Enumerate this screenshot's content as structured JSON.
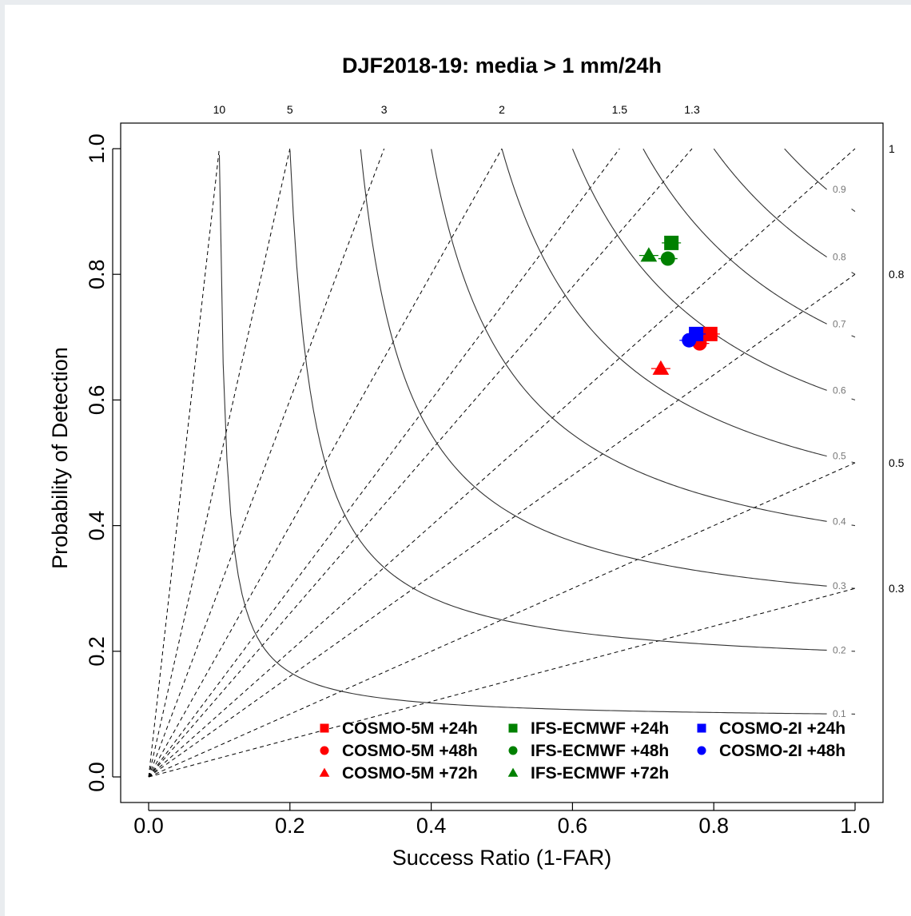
{
  "chart_data": {
    "type": "scatter",
    "title": "DJF2018-19: media > 1 mm/24h",
    "xlabel": "Success Ratio (1-FAR)",
    "ylabel": "Probability of Detection",
    "xlim": [
      0,
      1
    ],
    "ylim": [
      0,
      1
    ],
    "x_ticks": [
      "0.0",
      "0.2",
      "0.4",
      "0.6",
      "0.8",
      "1.0"
    ],
    "y_ticks": [
      "0.0",
      "0.2",
      "0.4",
      "0.6",
      "0.8",
      "1.0"
    ],
    "csi_isolines": [
      0.1,
      0.2,
      0.3,
      0.4,
      0.5,
      0.6,
      0.7,
      0.8,
      0.9
    ],
    "csi_labels": [
      "0.1",
      "0.2",
      "0.3",
      "0.4",
      "0.5",
      "0.6",
      "0.7",
      "0.8",
      "0.9"
    ],
    "bias_lines": [
      10,
      5,
      3,
      2,
      1.5,
      1.3,
      1,
      0.8,
      0.5,
      0.3
    ],
    "bias_labels_top": [
      "10",
      "5",
      "3",
      "2",
      "1.5",
      "1.3"
    ],
    "bias_labels_right": [
      "1",
      "0.8",
      "0.5",
      "0.3"
    ],
    "legend_position": "bottom-right",
    "series": [
      {
        "name": "COSMO-5M +24h",
        "color": "#ff0000",
        "marker": "square",
        "x": 0.795,
        "y": 0.705
      },
      {
        "name": "COSMO-5M +48h",
        "color": "#ff0000",
        "marker": "circle",
        "x": 0.78,
        "y": 0.69
      },
      {
        "name": "COSMO-5M +72h",
        "color": "#ff0000",
        "marker": "triangle",
        "x": 0.725,
        "y": 0.65
      },
      {
        "name": "IFS-ECMWF +24h",
        "color": "#008000",
        "marker": "square",
        "x": 0.74,
        "y": 0.85
      },
      {
        "name": "IFS-ECMWF +48h",
        "color": "#008000",
        "marker": "circle",
        "x": 0.735,
        "y": 0.825
      },
      {
        "name": "IFS-ECMWF +72h",
        "color": "#008000",
        "marker": "triangle",
        "x": 0.708,
        "y": 0.83
      },
      {
        "name": "COSMO-2I +24h",
        "color": "#0000ff",
        "marker": "square",
        "x": 0.775,
        "y": 0.705
      },
      {
        "name": "COSMO-2I +48h",
        "color": "#0000ff",
        "marker": "circle",
        "x": 0.765,
        "y": 0.695
      }
    ]
  }
}
